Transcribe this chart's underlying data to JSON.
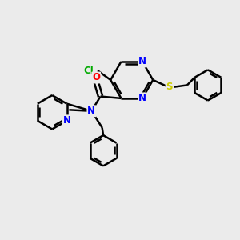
{
  "background_color": "#ebebeb",
  "bond_color": "#000000",
  "bond_width": 1.8,
  "atom_colors": {
    "N": "#0000ff",
    "O": "#ff0000",
    "S": "#cccc00",
    "Cl": "#00aa00",
    "C": "#000000"
  },
  "font_size": 8.5,
  "fig_size": [
    3.0,
    3.0
  ],
  "dpi": 100,
  "xlim": [
    0,
    10
  ],
  "ylim": [
    0,
    10
  ]
}
